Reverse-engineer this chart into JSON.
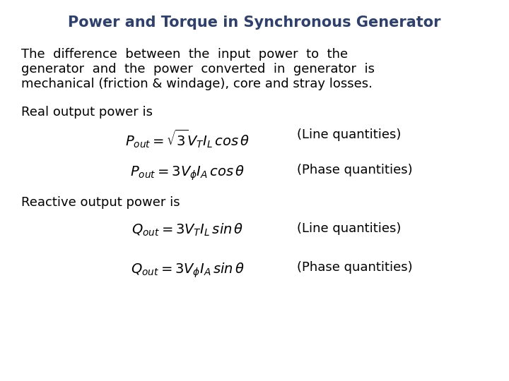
{
  "title": "Power and Torque in Synchronous Generator",
  "title_color": "#2E4070",
  "title_fontsize": 15,
  "bg_color": "#ffffff",
  "body_text_color": "#000000",
  "body_fontsize": 13,
  "eq_fontsize": 14,
  "label_fontsize": 13,
  "paragraph_line1": "The  difference  between  the  input  power  to  the",
  "paragraph_line2": "generator  and  the  power  converted  in  generator  is",
  "paragraph_line3": "mechanical (friction & windage), core and stray losses.",
  "label_real": "Real output power is",
  "label_reactive": "Reactive output power is",
  "eq1": "$P_{out} = \\sqrt{3}V_T I_L\\, cos\\,\\theta$",
  "eq1_label": "(Line quantities)",
  "eq2": "$P_{out} = 3V_{\\phi} I_A\\, cos\\,\\theta$",
  "eq2_label": "(Phase quantities)",
  "eq3": "$Q_{out} = 3V_T I_L\\, sin\\,\\theta$",
  "eq3_label": "(Line quantities)",
  "eq4": "$Q_{out} = 3V_{\\phi} I_A\\, sin\\,\\theta$",
  "eq4_label": "(Phase quantities)"
}
